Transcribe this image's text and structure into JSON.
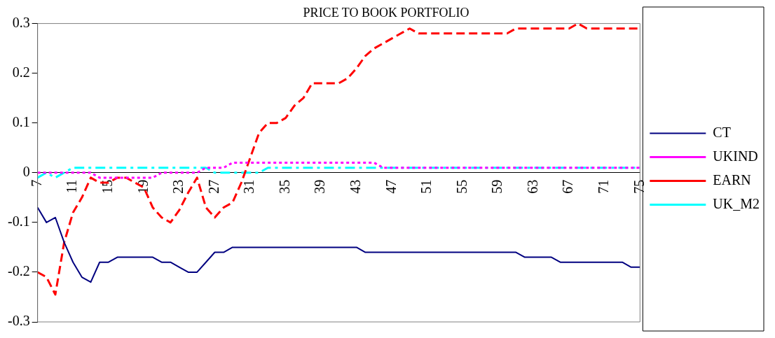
{
  "chart_data": {
    "type": "line",
    "title": "PRICE TO BOOK PORTFOLIO",
    "categories": [
      "7",
      null,
      null,
      null,
      "11",
      null,
      null,
      null,
      "15",
      null,
      null,
      null,
      "19",
      null,
      null,
      null,
      "23",
      null,
      null,
      null,
      "27",
      null,
      null,
      null,
      "31",
      null,
      null,
      null,
      "35",
      null,
      null,
      null,
      "39",
      null,
      null,
      null,
      "43",
      null,
      null,
      null,
      "47",
      null,
      null,
      null,
      "51",
      null,
      null,
      null,
      "55",
      null,
      null,
      null,
      "59",
      null,
      null,
      null,
      "63",
      null,
      null,
      null,
      "67",
      null,
      null,
      null,
      "71",
      null,
      null,
      null,
      "75"
    ],
    "series": [
      {
        "name": "CT",
        "color": "#000080",
        "line_style": "solid",
        "values": [
          -0.07,
          -0.1,
          -0.09,
          -0.14,
          -0.18,
          -0.21,
          -0.22,
          -0.18,
          -0.18,
          -0.17,
          -0.17,
          -0.17,
          -0.17,
          -0.17,
          -0.18,
          -0.18,
          -0.19,
          -0.2,
          -0.2,
          -0.18,
          -0.16,
          -0.16,
          -0.15,
          -0.15,
          -0.15,
          -0.15,
          -0.15,
          -0.15,
          -0.15,
          -0.15,
          -0.15,
          -0.15,
          -0.15,
          -0.15,
          -0.15,
          -0.15,
          -0.15,
          -0.16,
          -0.16,
          -0.16,
          -0.16,
          -0.16,
          -0.16,
          -0.16,
          -0.16,
          -0.16,
          -0.16,
          -0.16,
          -0.16,
          -0.16,
          -0.16,
          -0.16,
          -0.16,
          -0.16,
          -0.16,
          -0.17,
          -0.17,
          -0.17,
          -0.17,
          -0.18,
          -0.18,
          -0.18,
          -0.18,
          -0.18,
          -0.18,
          -0.18,
          -0.18,
          -0.19,
          -0.19
        ]
      },
      {
        "name": "UKIND",
        "color": "#ff00ff",
        "line_style": "dotted",
        "values": [
          0,
          0,
          0,
          0,
          0,
          0,
          0,
          -0.01,
          -0.01,
          -0.01,
          -0.01,
          -0.01,
          -0.01,
          -0.01,
          0,
          0,
          0,
          0,
          0,
          0.01,
          0.01,
          0.01,
          0.02,
          0.02,
          0.02,
          0.02,
          0.02,
          0.02,
          0.02,
          0.02,
          0.02,
          0.02,
          0.02,
          0.02,
          0.02,
          0.02,
          0.02,
          0.02,
          0.02,
          0.01,
          0.01,
          0.01,
          0.01,
          0.01,
          0.01,
          0.01,
          0.01,
          0.01,
          0.01,
          0.01,
          0.01,
          0.01,
          0.01,
          0.01,
          0.01,
          0.01,
          0.01,
          0.01,
          0.01,
          0.01,
          0.01,
          0.01,
          0.01,
          0.01,
          0.01,
          0.01,
          0.01,
          0.01,
          0.01
        ]
      },
      {
        "name": "EARN",
        "color": "#ff0000",
        "line_style": "dashed",
        "values": [
          -0.2,
          -0.21,
          -0.245,
          -0.14,
          -0.08,
          -0.05,
          -0.01,
          -0.02,
          -0.02,
          -0.01,
          -0.01,
          -0.02,
          -0.03,
          -0.07,
          -0.09,
          -0.1,
          -0.075,
          -0.04,
          -0.01,
          -0.07,
          -0.09,
          -0.07,
          -0.06,
          -0.02,
          0.03,
          0.08,
          0.1,
          0.1,
          0.11,
          0.135,
          0.15,
          0.18,
          0.18,
          0.18,
          0.18,
          0.19,
          0.21,
          0.235,
          0.25,
          0.26,
          0.27,
          0.28,
          0.29,
          0.28,
          0.28,
          0.28,
          0.28,
          0.28,
          0.28,
          0.28,
          0.28,
          0.28,
          0.28,
          0.28,
          0.29,
          0.29,
          0.29,
          0.29,
          0.29,
          0.29,
          0.29,
          0.3,
          0.29,
          0.29,
          0.29,
          0.29,
          0.29,
          0.29,
          0.29
        ]
      },
      {
        "name": "UK_M2",
        "color": "#00ffff",
        "line_style": "dashed",
        "values": [
          -0.01,
          0,
          -0.01,
          0,
          0.01,
          0.01,
          0.01,
          0.01,
          0.01,
          0.01,
          0.01,
          0.01,
          0.01,
          0.01,
          0.01,
          0.01,
          0.01,
          0.01,
          0.01,
          0.01,
          0,
          0,
          0,
          0,
          0,
          0,
          0.01,
          0.01,
          0.01,
          0.01,
          0.01,
          0.01,
          0.01,
          0.01,
          0.01,
          0.01,
          0.01,
          0.01,
          0.01,
          0.01,
          0.01,
          0.01,
          0.01,
          0.01,
          0.01,
          0.01,
          0.01,
          0.01,
          0.01,
          0.01,
          0.01,
          0.01,
          0.01,
          0.01,
          0.01,
          0.01,
          0.01,
          0.01,
          0.01,
          0.01,
          0.01,
          0.01,
          0.01,
          0.01,
          0.01,
          0.01,
          0.01,
          0.01,
          0.01
        ]
      }
    ],
    "ylim": [
      -0.3,
      0.3
    ],
    "yticks": [
      -0.3,
      -0.2,
      -0.1,
      0,
      0.1,
      0.2,
      0.3
    ],
    "grid": false,
    "legend": "right",
    "marker": "none"
  }
}
